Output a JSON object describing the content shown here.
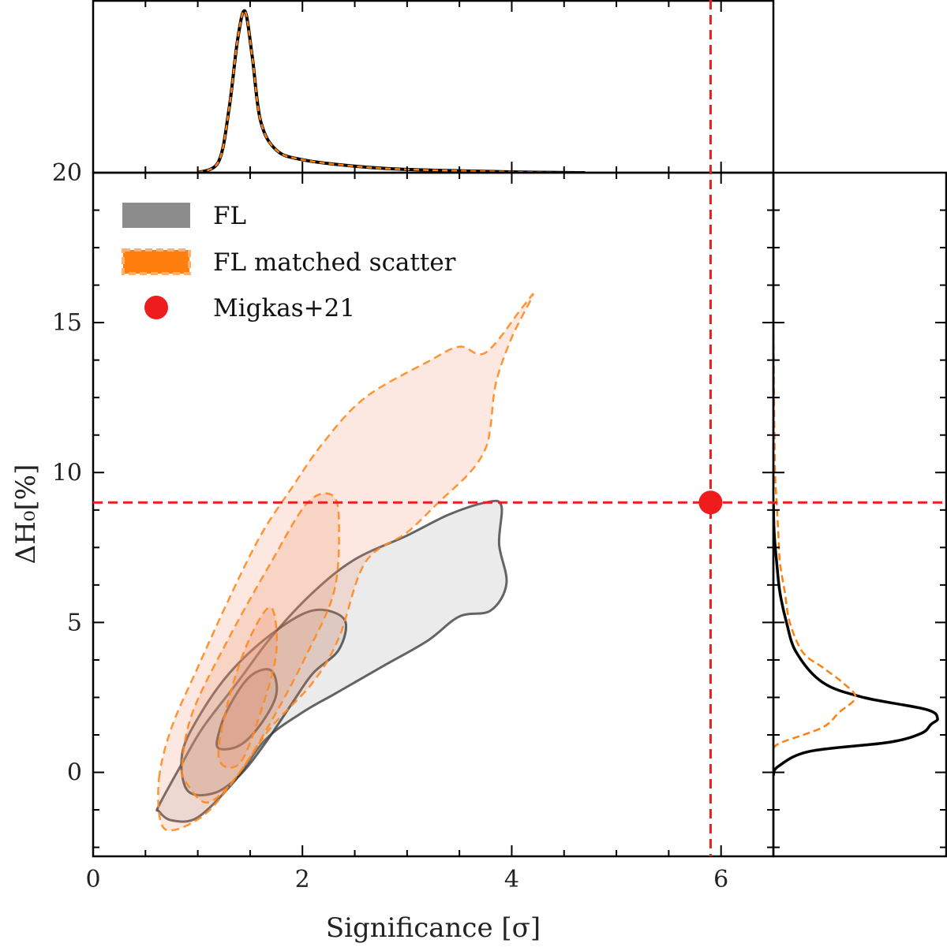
{
  "chart_data": {
    "type": "contour",
    "xlabel": "Significance [σ]",
    "ylabel": "ΔH₀[%]",
    "xlim": [
      0,
      6.5
    ],
    "ylim": [
      -2.8,
      20
    ],
    "x_ticks": [
      "0",
      "2",
      "4",
      "6"
    ],
    "y_ticks": [
      "0",
      "5",
      "10",
      "15",
      "20"
    ],
    "reference": {
      "name": "Migkas+21",
      "x": 5.9,
      "y": 9.0,
      "color": "#ee1c1c"
    },
    "legend": [
      {
        "label": "FL",
        "color": "#8c8c8c"
      },
      {
        "label": "FL matched scatter",
        "color": "#ff7f0e"
      },
      {
        "label": "Migkas+21",
        "color": "#ee1c1c"
      }
    ],
    "series": [
      {
        "name": "FL",
        "color": "#333333",
        "fill": "#9a9a9a",
        "contours": [
          {
            "level": "outer",
            "points": [
              [
                0.63,
                -1.3
              ],
              [
                0.63,
                -1.1
              ],
              [
                0.85,
                0.3
              ],
              [
                1.05,
                1.5
              ],
              [
                1.4,
                3.1
              ],
              [
                1.7,
                4.5
              ],
              [
                2.1,
                6.0
              ],
              [
                2.5,
                7.1
              ],
              [
                3.0,
                7.9
              ],
              [
                3.4,
                8.6
              ],
              [
                3.75,
                9.0
              ],
              [
                3.9,
                8.9
              ],
              [
                3.88,
                7.6
              ],
              [
                3.95,
                6.3
              ],
              [
                3.8,
                5.4
              ],
              [
                3.5,
                5.2
              ],
              [
                3.2,
                4.4
              ],
              [
                2.8,
                3.6
              ],
              [
                2.5,
                3.0
              ],
              [
                2.3,
                2.6
              ],
              [
                2.0,
                2.0
              ],
              [
                1.65,
                1.1
              ],
              [
                1.35,
                -0.3
              ],
              [
                1.0,
                -1.5
              ],
              [
                0.75,
                -1.6
              ]
            ]
          },
          {
            "level": "middle",
            "points": [
              [
                0.9,
                -0.6
              ],
              [
                0.85,
                0.6
              ],
              [
                1.0,
                1.8
              ],
              [
                1.3,
                3.3
              ],
              [
                1.7,
                4.6
              ],
              [
                2.1,
                5.4
              ],
              [
                2.4,
                5.1
              ],
              [
                2.35,
                4.1
              ],
              [
                2.1,
                3.3
              ],
              [
                1.9,
                2.3
              ],
              [
                1.65,
                1.0
              ],
              [
                1.4,
                -0.1
              ],
              [
                1.15,
                -0.7
              ]
            ]
          },
          {
            "level": "inner",
            "points": [
              [
                1.2,
                1.3
              ],
              [
                1.3,
                2.2
              ],
              [
                1.5,
                3.2
              ],
              [
                1.7,
                3.4
              ],
              [
                1.75,
                2.6
              ],
              [
                1.6,
                1.6
              ],
              [
                1.4,
                0.9
              ],
              [
                1.2,
                0.8
              ]
            ]
          }
        ]
      },
      {
        "name": "FL matched scatter",
        "color": "#ff8a1e",
        "fill": "#ef8c63",
        "contours": [
          {
            "level": "outer",
            "points": [
              [
                0.63,
                -0.2
              ],
              [
                0.75,
                1.5
              ],
              [
                1.0,
                3.5
              ],
              [
                1.3,
                5.8
              ],
              [
                1.6,
                7.9
              ],
              [
                1.9,
                9.5
              ],
              [
                2.2,
                11.0
              ],
              [
                2.6,
                12.5
              ],
              [
                3.2,
                13.7
              ],
              [
                3.5,
                14.2
              ],
              [
                3.75,
                14.0
              ],
              [
                4.1,
                15.5
              ],
              [
                4.2,
                15.9
              ],
              [
                4.0,
                14.5
              ],
              [
                3.85,
                13.0
              ],
              [
                3.8,
                11.6
              ],
              [
                3.75,
                10.8
              ],
              [
                3.6,
                10.0
              ],
              [
                3.3,
                9.0
              ],
              [
                3.0,
                8.0
              ],
              [
                2.6,
                7.0
              ],
              [
                2.35,
                4.5
              ],
              [
                2.1,
                3.0
              ],
              [
                1.7,
                1.5
              ],
              [
                1.4,
                0.0
              ],
              [
                1.1,
                -1.3
              ],
              [
                0.8,
                -1.9
              ],
              [
                0.65,
                -1.7
              ]
            ]
          },
          {
            "level": "middle",
            "points": [
              [
                0.85,
                0.2
              ],
              [
                0.95,
                2.0
              ],
              [
                1.3,
                4.5
              ],
              [
                1.7,
                7.0
              ],
              [
                2.05,
                9.0
              ],
              [
                2.3,
                9.2
              ],
              [
                2.35,
                8.0
              ],
              [
                2.3,
                6.0
              ],
              [
                2.05,
                4.0
              ],
              [
                1.75,
                2.0
              ],
              [
                1.4,
                0.0
              ],
              [
                1.1,
                -1.0
              ],
              [
                0.9,
                -0.4
              ]
            ]
          },
          {
            "level": "inner",
            "points": [
              [
                1.2,
                0.5
              ],
              [
                1.3,
                2.5
              ],
              [
                1.5,
                4.5
              ],
              [
                1.7,
                5.5
              ],
              [
                1.75,
                4.0
              ],
              [
                1.6,
                2.0
              ],
              [
                1.4,
                0.3
              ]
            ]
          }
        ]
      }
    ],
    "marginal_x": {
      "FL": [
        [
          1.0,
          0.0
        ],
        [
          1.2,
          0.07
        ],
        [
          1.3,
          0.4
        ],
        [
          1.38,
          0.82
        ],
        [
          1.45,
          1.0
        ],
        [
          1.52,
          0.72
        ],
        [
          1.6,
          0.32
        ],
        [
          1.75,
          0.14
        ],
        [
          2.0,
          0.08
        ],
        [
          2.5,
          0.04
        ],
        [
          3.0,
          0.02
        ],
        [
          4.0,
          0.005
        ],
        [
          4.7,
          0.0
        ]
      ],
      "FL matched scatter": [
        [
          1.0,
          0.0
        ],
        [
          1.2,
          0.07
        ],
        [
          1.3,
          0.4
        ],
        [
          1.38,
          0.82
        ],
        [
          1.45,
          1.0
        ],
        [
          1.52,
          0.72
        ],
        [
          1.6,
          0.32
        ],
        [
          1.75,
          0.14
        ],
        [
          2.0,
          0.08
        ],
        [
          2.5,
          0.04
        ],
        [
          3.0,
          0.02
        ],
        [
          4.0,
          0.005
        ],
        [
          4.7,
          0.0
        ]
      ]
    },
    "marginal_y": {
      "FL": [
        [
          -0.1,
          0.0
        ],
        [
          0.2,
          0.03
        ],
        [
          0.7,
          0.22
        ],
        [
          1.0,
          0.7
        ],
        [
          1.3,
          0.9
        ],
        [
          1.6,
          0.96
        ],
        [
          1.8,
          1.0
        ],
        [
          2.1,
          0.93
        ],
        [
          2.5,
          0.55
        ],
        [
          3.0,
          0.3
        ],
        [
          4.0,
          0.14
        ],
        [
          5.0,
          0.08
        ],
        [
          6.0,
          0.04
        ],
        [
          7.0,
          0.02
        ],
        [
          8.0,
          0.005
        ],
        [
          9.0,
          0.0
        ]
      ],
      "FL matched scatter": [
        [
          0.8,
          0.0
        ],
        [
          1.0,
          0.05
        ],
        [
          1.5,
          0.3
        ],
        [
          2.0,
          0.4
        ],
        [
          2.5,
          0.5
        ],
        [
          3.0,
          0.42
        ],
        [
          3.5,
          0.3
        ],
        [
          4.0,
          0.18
        ],
        [
          5.0,
          0.1
        ],
        [
          6.0,
          0.07
        ],
        [
          7.0,
          0.04
        ],
        [
          8.0,
          0.03
        ],
        [
          9.0,
          0.02
        ],
        [
          10.0,
          0.01
        ],
        [
          12.0,
          0.005
        ],
        [
          15.0,
          0.0
        ]
      ]
    }
  }
}
